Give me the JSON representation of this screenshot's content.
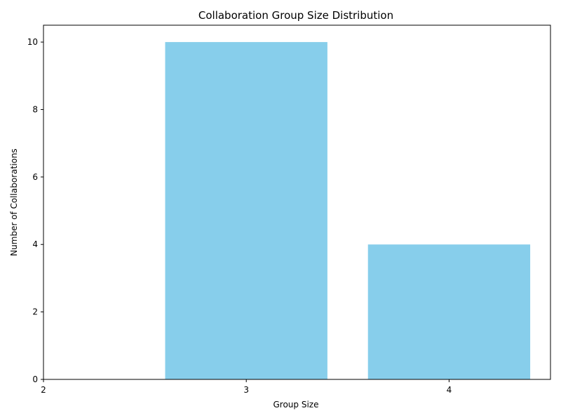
{
  "chart_data": {
    "type": "bar",
    "title": "Collaboration Group Size Distribution",
    "xlabel": "Group Size",
    "ylabel": "Number of Collaborations",
    "categories": [
      3,
      4
    ],
    "values": [
      10,
      4
    ],
    "xlim": [
      2,
      4.5
    ],
    "ylim": [
      0,
      10.5
    ],
    "x_ticks": [
      2,
      3,
      4
    ],
    "y_ticks": [
      0,
      2,
      4,
      6,
      8,
      10
    ],
    "bar_width": 0.8,
    "bar_color": "#87CEEB",
    "grid": false,
    "legend": "none"
  }
}
